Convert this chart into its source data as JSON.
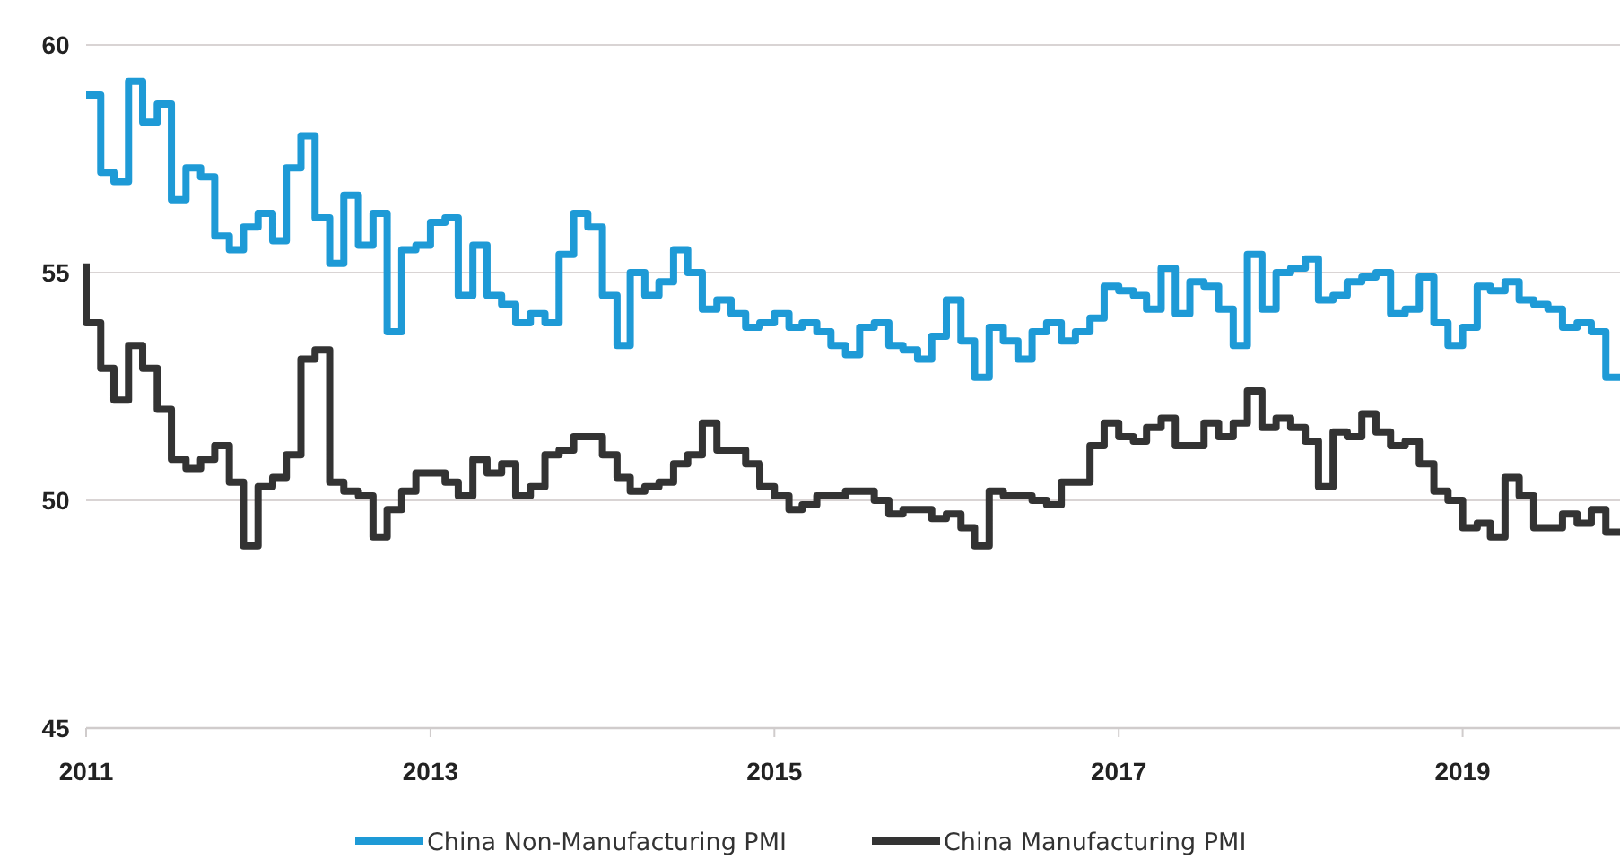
{
  "chart_data": {
    "type": "step",
    "x": [
      "2011-01",
      "2011-02",
      "2011-03",
      "2011-04",
      "2011-05",
      "2011-06",
      "2011-07",
      "2011-08",
      "2011-09",
      "2011-10",
      "2011-11",
      "2011-12",
      "2012-01",
      "2012-02",
      "2012-03",
      "2012-04",
      "2012-05",
      "2012-06",
      "2012-07",
      "2012-08",
      "2012-09",
      "2012-10",
      "2012-11",
      "2012-12",
      "2013-01",
      "2013-02",
      "2013-03",
      "2013-04",
      "2013-05",
      "2013-06",
      "2013-07",
      "2013-08",
      "2013-09",
      "2013-10",
      "2013-11",
      "2013-12",
      "2014-01",
      "2014-02",
      "2014-03",
      "2014-04",
      "2014-05",
      "2014-06",
      "2014-07",
      "2014-08",
      "2014-09",
      "2014-10",
      "2014-11",
      "2014-12",
      "2015-01",
      "2015-02",
      "2015-03",
      "2015-04",
      "2015-05",
      "2015-06",
      "2015-07",
      "2015-08",
      "2015-09",
      "2015-10",
      "2015-11",
      "2015-12",
      "2016-01",
      "2016-02",
      "2016-03",
      "2016-04",
      "2016-05",
      "2016-06",
      "2016-07",
      "2016-08",
      "2016-09",
      "2016-10",
      "2016-11",
      "2016-12",
      "2017-01",
      "2017-02",
      "2017-03",
      "2017-04",
      "2017-05",
      "2017-06",
      "2017-07",
      "2017-08",
      "2017-09",
      "2017-10",
      "2017-11",
      "2017-12",
      "2018-01",
      "2018-02",
      "2018-03",
      "2018-04",
      "2018-05",
      "2018-06",
      "2018-07",
      "2018-08",
      "2018-09",
      "2018-10",
      "2018-11",
      "2018-12",
      "2019-01",
      "2019-02",
      "2019-03",
      "2019-04",
      "2019-05",
      "2019-06",
      "2019-07",
      "2019-08",
      "2019-09",
      "2019-10",
      "2019-11",
      "2019-12"
    ],
    "series": [
      {
        "name": "China Non-Manufacturing PMI",
        "color": "#1e9ad6",
        "values": [
          58.9,
          58.9,
          57.2,
          57.0,
          59.2,
          58.3,
          58.7,
          56.6,
          57.3,
          57.1,
          55.8,
          55.5,
          56.0,
          56.3,
          55.7,
          57.3,
          58.0,
          56.2,
          55.2,
          56.7,
          55.6,
          56.3,
          53.7,
          55.5,
          55.6,
          56.1,
          56.2,
          54.5,
          55.6,
          54.5,
          54.3,
          53.9,
          54.1,
          53.9,
          55.4,
          56.3,
          56.0,
          54.5,
          53.4,
          55.0,
          54.5,
          54.8,
          55.5,
          55.0,
          54.2,
          54.4,
          54.1,
          53.8,
          53.9,
          54.1,
          53.8,
          53.9,
          53.7,
          53.4,
          53.2,
          53.8,
          53.9,
          53.4,
          53.3,
          53.1,
          53.6,
          54.4,
          53.5,
          52.7,
          53.8,
          53.5,
          53.1,
          53.7,
          53.9,
          53.5,
          53.7,
          54.0,
          54.7,
          54.6,
          54.5,
          54.2,
          55.1,
          54.1,
          54.8,
          54.7,
          54.2,
          53.4,
          55.4,
          54.2,
          55.0,
          55.1,
          55.3,
          54.4,
          54.5,
          54.8,
          54.9,
          55.0,
          54.1,
          54.2,
          54.9,
          53.9,
          53.4,
          53.8,
          54.7,
          54.6,
          54.8,
          54.4,
          54.3,
          54.2,
          53.8,
          53.9,
          53.7,
          52.7
        ]
      },
      {
        "name": "China Manufacturing PMI",
        "color": "#333333",
        "values": [
          55.2,
          53.9,
          52.9,
          52.2,
          53.4,
          52.9,
          52.0,
          50.9,
          50.7,
          50.9,
          51.2,
          50.4,
          49.0,
          50.3,
          50.5,
          51.0,
          53.1,
          53.3,
          50.4,
          50.2,
          50.1,
          49.2,
          49.8,
          50.2,
          50.6,
          50.6,
          50.4,
          50.1,
          50.9,
          50.6,
          50.8,
          50.1,
          50.3,
          51.0,
          51.1,
          51.4,
          51.4,
          51.0,
          50.5,
          50.2,
          50.3,
          50.4,
          50.8,
          51.0,
          51.7,
          51.1,
          51.1,
          50.8,
          50.3,
          50.1,
          49.8,
          49.9,
          50.1,
          50.1,
          50.2,
          50.2,
          50.0,
          49.7,
          49.8,
          49.8,
          49.6,
          49.7,
          49.4,
          49.0,
          50.2,
          50.1,
          50.1,
          50.0,
          49.9,
          50.4,
          50.4,
          51.2,
          51.7,
          51.4,
          51.3,
          51.6,
          51.8,
          51.2,
          51.2,
          51.7,
          51.4,
          51.7,
          52.4,
          51.6,
          51.8,
          51.6,
          51.3,
          50.3,
          51.5,
          51.4,
          51.9,
          51.5,
          51.2,
          51.3,
          50.8,
          50.2,
          50.0,
          49.4,
          49.5,
          49.2,
          50.5,
          50.1,
          49.4,
          49.4,
          49.7,
          49.5,
          49.8,
          49.3
        ]
      }
    ],
    "xlim": [
      "2011-01",
      "2019-12"
    ],
    "xticks": [
      {
        "value": "2011",
        "label": "2011"
      },
      {
        "value": "2013",
        "label": "2013"
      },
      {
        "value": "2015",
        "label": "2015"
      },
      {
        "value": "2017",
        "label": "2017"
      },
      {
        "value": "2019",
        "label": "2019"
      }
    ],
    "ylim": [
      45,
      60
    ],
    "yticks": [
      45,
      50,
      55,
      60
    ],
    "grid": "y",
    "legend": "bottom",
    "line_style": "solid",
    "marker": "none"
  }
}
